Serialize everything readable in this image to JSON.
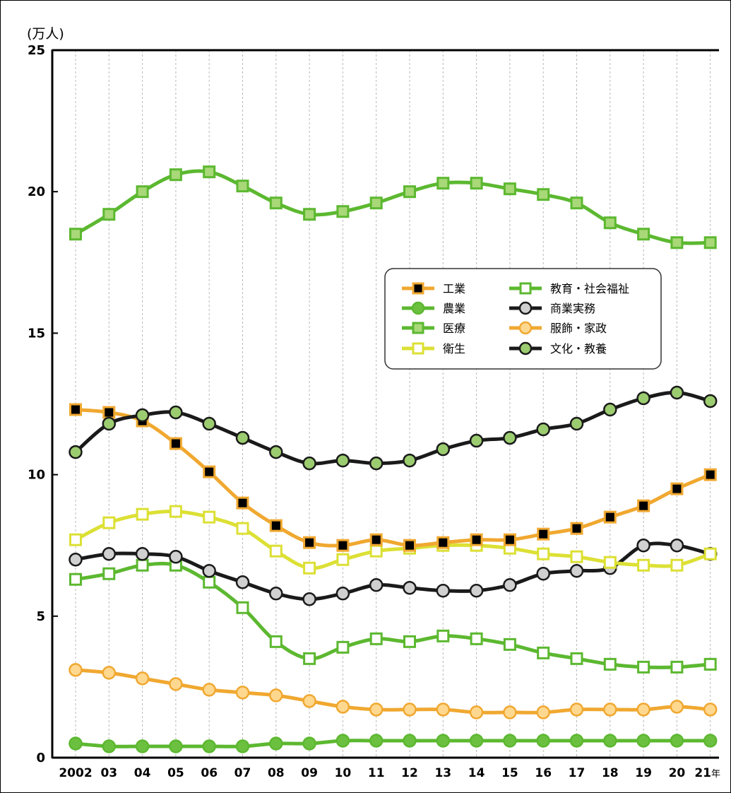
{
  "chart_data": {
    "type": "line",
    "title": "",
    "ylabel": "(万人)",
    "xunit": "年",
    "ylim": [
      0,
      25
    ],
    "yticks": [
      "0",
      "5",
      "10",
      "15",
      "20",
      "25"
    ],
    "categories": [
      "2002",
      "03",
      "04",
      "05",
      "06",
      "07",
      "08",
      "09",
      "10",
      "11",
      "12",
      "13",
      "14",
      "15",
      "16",
      "17",
      "18",
      "19",
      "20",
      "21"
    ],
    "x_last_label": "21",
    "grid": "vertical-dashed",
    "legend_position": "center-right",
    "series": [
      {
        "name": "工業",
        "line": "#f0a830",
        "marker": "square",
        "fill": "#000000",
        "edge": "#f0a830",
        "values": [
          12.3,
          12.2,
          11.9,
          11.1,
          10.1,
          9.0,
          8.2,
          7.6,
          7.5,
          7.7,
          7.5,
          7.6,
          7.7,
          7.7,
          7.9,
          8.1,
          8.5,
          8.9,
          9.5,
          10.0
        ]
      },
      {
        "name": "農業",
        "line": "#5cb830",
        "marker": "circle",
        "fill": "#6cc040",
        "edge": "#5cb830",
        "values": [
          0.5,
          0.4,
          0.4,
          0.4,
          0.4,
          0.4,
          0.5,
          0.5,
          0.6,
          0.6,
          0.6,
          0.6,
          0.6,
          0.6,
          0.6,
          0.6,
          0.6,
          0.6,
          0.6,
          0.6
        ]
      },
      {
        "name": "医療",
        "line": "#5cb830",
        "marker": "square",
        "fill": "#a8d878",
        "edge": "#5cb830",
        "values": [
          18.5,
          19.2,
          20.0,
          20.6,
          20.7,
          20.2,
          19.6,
          19.2,
          19.3,
          19.6,
          20.0,
          20.3,
          20.3,
          20.1,
          19.9,
          19.6,
          18.9,
          18.5,
          18.2,
          18.2
        ]
      },
      {
        "name": "衛生",
        "line": "#dce034",
        "marker": "square",
        "fill": "#ffffff",
        "edge": "#dce034",
        "values": [
          7.7,
          8.3,
          8.6,
          8.7,
          8.5,
          8.1,
          7.3,
          6.7,
          7.0,
          7.3,
          7.4,
          7.5,
          7.5,
          7.4,
          7.2,
          7.1,
          6.9,
          6.8,
          6.8,
          7.2
        ]
      },
      {
        "name": "教育・社会福祉",
        "line": "#5cb830",
        "marker": "square",
        "fill": "#ffffff",
        "edge": "#5cb830",
        "values": [
          6.3,
          6.5,
          6.8,
          6.8,
          6.2,
          5.3,
          4.1,
          3.5,
          3.9,
          4.2,
          4.1,
          4.3,
          4.2,
          4.0,
          3.7,
          3.5,
          3.3,
          3.2,
          3.2,
          3.3
        ]
      },
      {
        "name": "商業実務",
        "line": "#1a1a1a",
        "marker": "circle",
        "fill": "#d0d0d0",
        "edge": "#1a1a1a",
        "values": [
          7.0,
          7.2,
          7.2,
          7.1,
          6.6,
          6.2,
          5.8,
          5.6,
          5.8,
          6.1,
          6.0,
          5.9,
          5.9,
          6.1,
          6.5,
          6.6,
          6.7,
          7.5,
          7.5,
          7.2
        ]
      },
      {
        "name": "服飾・家政",
        "line": "#f0a830",
        "marker": "circle",
        "fill": "#ffd890",
        "edge": "#f0a830",
        "values": [
          3.1,
          3.0,
          2.8,
          2.6,
          2.4,
          2.3,
          2.2,
          2.0,
          1.8,
          1.7,
          1.7,
          1.7,
          1.6,
          1.6,
          1.6,
          1.7,
          1.7,
          1.7,
          1.8,
          1.7
        ]
      },
      {
        "name": "文化・教養",
        "line": "#1a1a1a",
        "marker": "circle",
        "fill": "#9ccc70",
        "edge": "#1a1a1a",
        "values": [
          10.8,
          11.8,
          12.1,
          12.2,
          11.8,
          11.3,
          10.8,
          10.4,
          10.5,
          10.4,
          10.5,
          10.9,
          11.2,
          11.3,
          11.6,
          11.8,
          12.3,
          12.7,
          12.9,
          12.6
        ]
      }
    ],
    "legend": {
      "left_column": [
        "工業",
        "農業",
        "医療",
        "衛生"
      ],
      "right_column": [
        "教育・社会福祉",
        "商業実務",
        "服飾・家政",
        "文化・教養"
      ]
    }
  }
}
